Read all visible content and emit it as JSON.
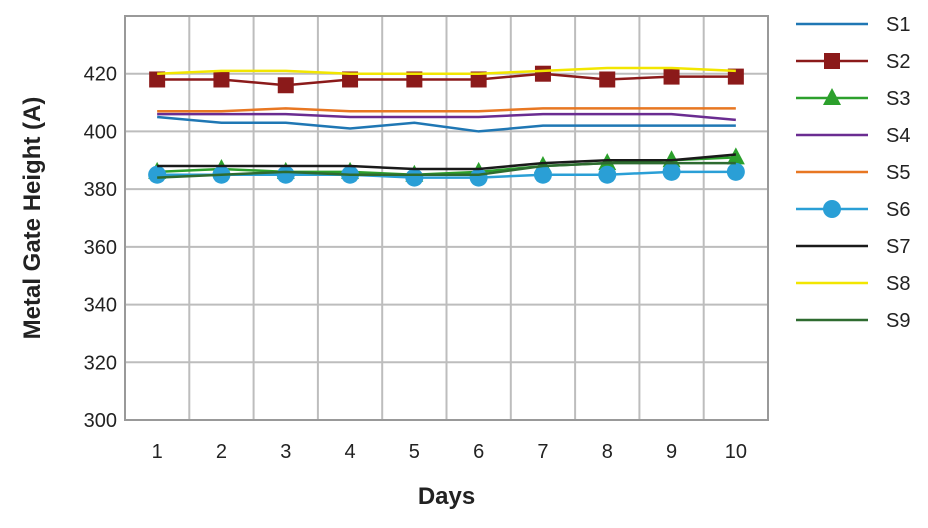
{
  "chart_data": {
    "type": "line",
    "xlabel": "Days",
    "ylabel": "Metal Gate Height (A)",
    "x": [
      1,
      2,
      3,
      4,
      5,
      6,
      7,
      8,
      9,
      10
    ],
    "ylim": [
      300,
      440
    ],
    "yticks": [
      300,
      320,
      340,
      360,
      380,
      400,
      420
    ],
    "grid": true,
    "legend_position": "right",
    "series": [
      {
        "name": "S1",
        "color": "#1f77b4",
        "marker": "none",
        "values": [
          405,
          403,
          403,
          401,
          403,
          400,
          402,
          402,
          402,
          402
        ]
      },
      {
        "name": "S2",
        "color": "#8b1a1a",
        "marker": "square",
        "values": [
          418,
          418,
          416,
          418,
          418,
          418,
          420,
          418,
          419,
          419
        ]
      },
      {
        "name": "S3",
        "color": "#2ca02c",
        "marker": "triangle",
        "values": [
          386,
          387,
          386,
          386,
          385,
          386,
          388,
          389,
          390,
          391
        ]
      },
      {
        "name": "S4",
        "color": "#6a2c91",
        "marker": "none",
        "values": [
          406,
          406,
          406,
          405,
          405,
          405,
          406,
          406,
          406,
          404
        ]
      },
      {
        "name": "S5",
        "color": "#e87722",
        "marker": "none",
        "values": [
          407,
          407,
          408,
          407,
          407,
          407,
          408,
          408,
          408,
          408
        ]
      },
      {
        "name": "S6",
        "color": "#2a9fd6",
        "marker": "circle",
        "values": [
          385,
          385,
          385,
          385,
          384,
          384,
          385,
          385,
          386,
          386
        ]
      },
      {
        "name": "S7",
        "color": "#1a1a1a",
        "marker": "none",
        "values": [
          388,
          388,
          388,
          388,
          387,
          387,
          389,
          390,
          390,
          392
        ]
      },
      {
        "name": "S8",
        "color": "#f2e600",
        "marker": "none",
        "values": [
          420,
          421,
          421,
          420,
          420,
          420,
          421,
          422,
          422,
          421
        ]
      },
      {
        "name": "S9",
        "color": "#2e6b30",
        "marker": "none",
        "values": [
          384,
          385,
          386,
          385,
          385,
          385,
          388,
          389,
          389,
          389
        ]
      }
    ]
  }
}
